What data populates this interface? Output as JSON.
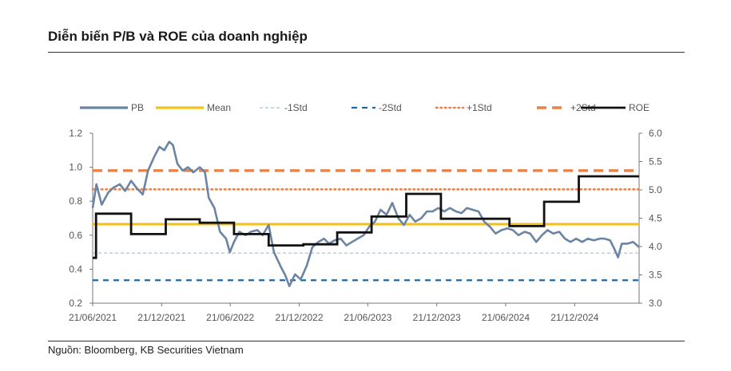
{
  "title": "Diễn biến P/B và ROE của doanh nghiệp",
  "source": "Nguồn: Bloomberg, KB Securities Vietnam",
  "chart_data": {
    "type": "line",
    "x_ticks": [
      "21/06/2021",
      "21/12/2021",
      "21/06/2022",
      "21/12/2022",
      "21/06/2023",
      "21/12/2023",
      "21/06/2024",
      "21/12/2024"
    ],
    "y_left": {
      "ticks": [
        "0.2",
        "0.4",
        "0.6",
        "0.8",
        "1.0",
        "1.2"
      ],
      "range": [
        0.2,
        1.2
      ]
    },
    "y_right": {
      "ticks": [
        "3.0",
        "3.5",
        "4.0",
        "4.5",
        "5.0",
        "5.5",
        "6.0"
      ],
      "range": [
        3.0,
        6.0
      ]
    },
    "x_range": [
      "2021-06-21",
      "2025-06-10"
    ],
    "grid": false,
    "legend_position": "top",
    "legend": [
      {
        "name": "PB",
        "color": "#6b84a3",
        "style": "solid"
      },
      {
        "name": "Mean",
        "color": "#f2c21b",
        "style": "solid"
      },
      {
        "name": "-1Std",
        "color": "#9fc0de",
        "style": "dashed-fine"
      },
      {
        "name": "-2Std",
        "color": "#1f6aa5",
        "style": "dashed"
      },
      {
        "name": "+1Std",
        "color": "#e8824a",
        "style": "dotted"
      },
      {
        "name": "+2Std",
        "color": "#e8824a",
        "style": "dashed-long"
      },
      {
        "name": "ROE",
        "color": "#111111",
        "style": "step"
      }
    ],
    "series": [
      {
        "name": "Mean",
        "axis": "left",
        "value": 0.665
      },
      {
        "name": "-1Std",
        "axis": "left",
        "value": 0.495
      },
      {
        "name": "-2Std",
        "axis": "left",
        "value": 0.335
      },
      {
        "name": "+1Std",
        "axis": "left",
        "value": 0.87
      },
      {
        "name": "+2Std",
        "axis": "left",
        "value": 0.98
      },
      {
        "name": "PB",
        "axis": "left",
        "x": [
          "2021-06-21",
          "2021-07-01",
          "2021-07-15",
          "2021-08-01",
          "2021-08-15",
          "2021-09-01",
          "2021-09-15",
          "2021-10-01",
          "2021-10-15",
          "2021-11-01",
          "2021-11-15",
          "2021-12-01",
          "2021-12-15",
          "2021-12-28",
          "2022-01-10",
          "2022-01-20",
          "2022-02-01",
          "2022-02-15",
          "2022-03-01",
          "2022-03-15",
          "2022-04-01",
          "2022-04-15",
          "2022-04-25",
          "2022-05-10",
          "2022-05-25",
          "2022-06-10",
          "2022-06-20",
          "2022-07-01",
          "2022-07-15",
          "2022-08-01",
          "2022-08-15",
          "2022-09-01",
          "2022-09-15",
          "2022-10-01",
          "2022-10-15",
          "2022-11-01",
          "2022-11-15",
          "2022-11-25",
          "2022-12-10",
          "2022-12-25",
          "2023-01-10",
          "2023-01-25",
          "2023-02-10",
          "2023-02-25",
          "2023-03-10",
          "2023-03-25",
          "2023-04-10",
          "2023-04-25",
          "2023-05-10",
          "2023-05-25",
          "2023-06-10",
          "2023-06-25",
          "2023-07-10",
          "2023-07-25",
          "2023-08-10",
          "2023-08-25",
          "2023-09-10",
          "2023-09-25",
          "2023-10-10",
          "2023-10-25",
          "2023-11-10",
          "2023-11-25",
          "2023-12-10",
          "2023-12-25",
          "2024-01-10",
          "2024-01-25",
          "2024-02-10",
          "2024-02-25",
          "2024-03-10",
          "2024-03-25",
          "2024-04-10",
          "2024-04-25",
          "2024-05-10",
          "2024-05-25",
          "2024-06-10",
          "2024-06-25",
          "2024-07-10",
          "2024-07-25",
          "2024-08-10",
          "2024-08-25",
          "2024-09-10",
          "2024-09-25",
          "2024-10-10",
          "2024-10-25",
          "2024-11-10",
          "2024-11-25",
          "2024-12-10",
          "2024-12-25",
          "2025-01-10",
          "2025-01-25",
          "2025-02-10",
          "2025-02-25",
          "2025-03-10",
          "2025-03-25",
          "2025-04-05",
          "2025-04-15",
          "2025-04-25",
          "2025-05-10",
          "2025-05-25",
          "2025-06-10"
        ],
        "y": [
          0.76,
          0.9,
          0.78,
          0.85,
          0.88,
          0.9,
          0.86,
          0.92,
          0.88,
          0.84,
          0.98,
          1.06,
          1.12,
          1.1,
          1.15,
          1.13,
          1.02,
          0.98,
          1.0,
          0.97,
          1.0,
          0.97,
          0.82,
          0.76,
          0.62,
          0.58,
          0.5,
          0.56,
          0.62,
          0.6,
          0.62,
          0.63,
          0.6,
          0.66,
          0.5,
          0.42,
          0.36,
          0.3,
          0.37,
          0.34,
          0.42,
          0.53,
          0.56,
          0.58,
          0.55,
          0.57,
          0.58,
          0.54,
          0.56,
          0.58,
          0.6,
          0.65,
          0.68,
          0.75,
          0.72,
          0.79,
          0.7,
          0.66,
          0.72,
          0.68,
          0.7,
          0.74,
          0.74,
          0.76,
          0.74,
          0.76,
          0.74,
          0.73,
          0.76,
          0.75,
          0.74,
          0.68,
          0.65,
          0.61,
          0.63,
          0.64,
          0.63,
          0.6,
          0.62,
          0.61,
          0.56,
          0.6,
          0.63,
          0.61,
          0.62,
          0.58,
          0.56,
          0.58,
          0.56,
          0.58,
          0.57,
          0.58,
          0.58,
          0.57,
          0.52,
          0.47,
          0.55,
          0.55,
          0.56,
          0.53
        ]
      },
      {
        "name": "ROE",
        "axis": "right",
        "x": [
          "2021-06-21",
          "2021-06-30",
          "2021-10-01",
          "2022-01-01",
          "2022-04-01",
          "2022-07-01",
          "2022-10-01",
          "2023-01-01",
          "2023-04-01",
          "2023-07-01",
          "2023-10-01",
          "2024-01-01",
          "2024-04-01",
          "2024-07-01",
          "2024-10-01",
          "2025-01-01",
          "2025-06-10"
        ],
        "y": [
          3.8,
          4.58,
          4.22,
          4.48,
          4.42,
          4.22,
          4.02,
          4.04,
          4.25,
          4.53,
          4.93,
          4.49,
          4.49,
          4.36,
          4.79,
          5.24,
          5.24
        ]
      }
    ]
  }
}
